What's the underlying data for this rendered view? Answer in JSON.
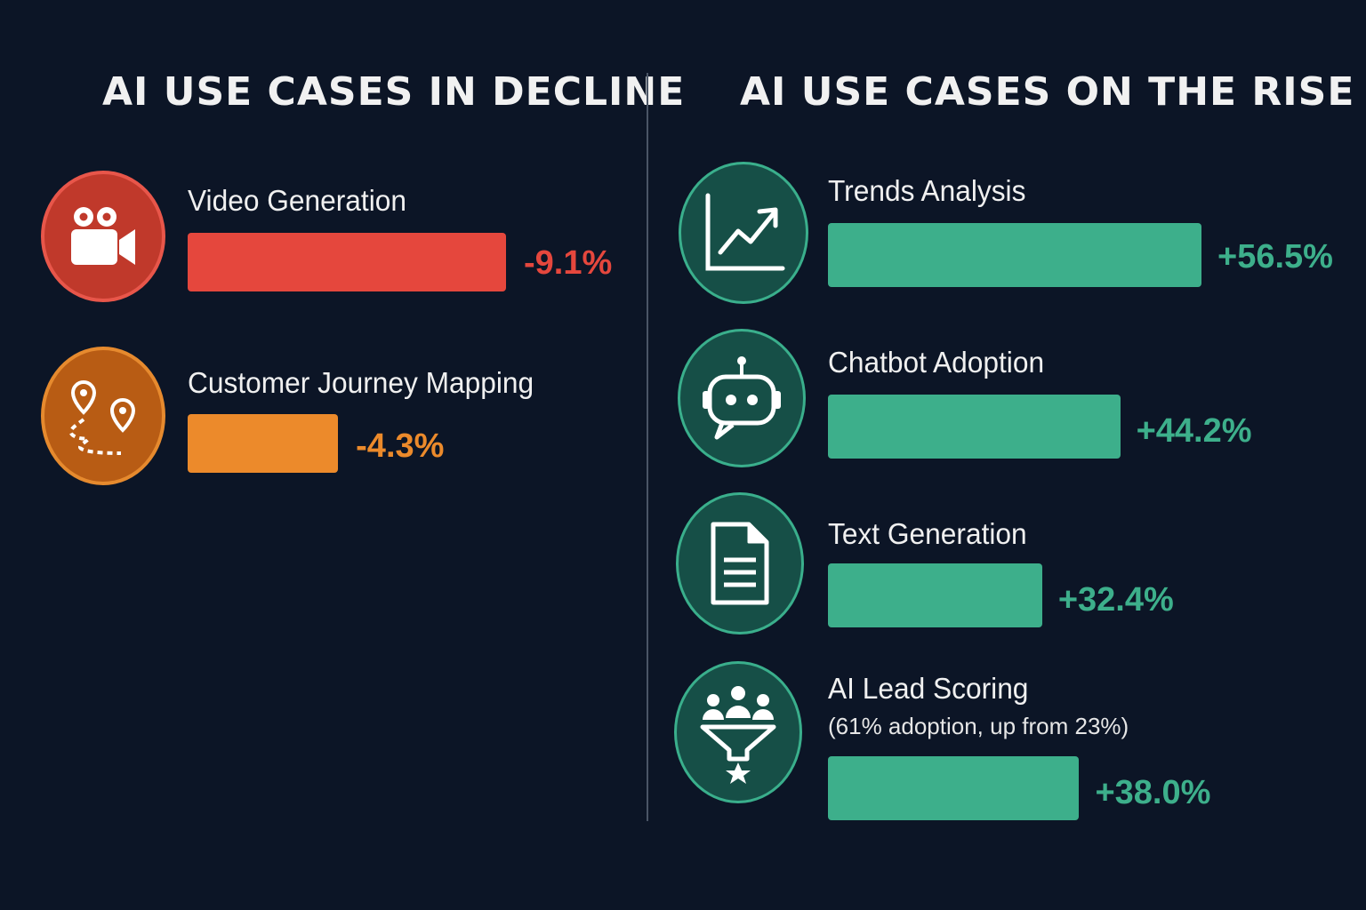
{
  "colors": {
    "background": "#0c1526",
    "decline_primary": "#e5473d",
    "decline_secondary": "#ec8a2b",
    "rise": "#3daf8b"
  },
  "chart_data": [
    {
      "type": "bar",
      "orientation": "horizontal",
      "title": "AI USE CASES IN DECLINE",
      "categories": [
        "Video Generation",
        "Customer Journey Mapping"
      ],
      "values": [
        -9.1,
        -4.3
      ],
      "value_labels": [
        "-9.1%",
        "-4.3%"
      ],
      "icons": [
        "video-camera-icon",
        "journey-map-icon"
      ],
      "grid": false
    },
    {
      "type": "bar",
      "orientation": "horizontal",
      "title": "AI USE CASES ON THE RISE",
      "categories": [
        "Trends Analysis",
        "Chatbot Adoption",
        "Text Generation",
        "AI Lead Scoring"
      ],
      "values": [
        56.5,
        44.2,
        32.4,
        38.0
      ],
      "value_labels": [
        "+56.5%",
        "+44.2%",
        "+32.4%",
        "+38.0%"
      ],
      "annotations": [
        "",
        "",
        "",
        "(61% adoption, up from 23%)"
      ],
      "icons": [
        "trend-chart-icon",
        "chatbot-icon",
        "document-icon",
        "lead-funnel-icon"
      ],
      "grid": false
    }
  ]
}
